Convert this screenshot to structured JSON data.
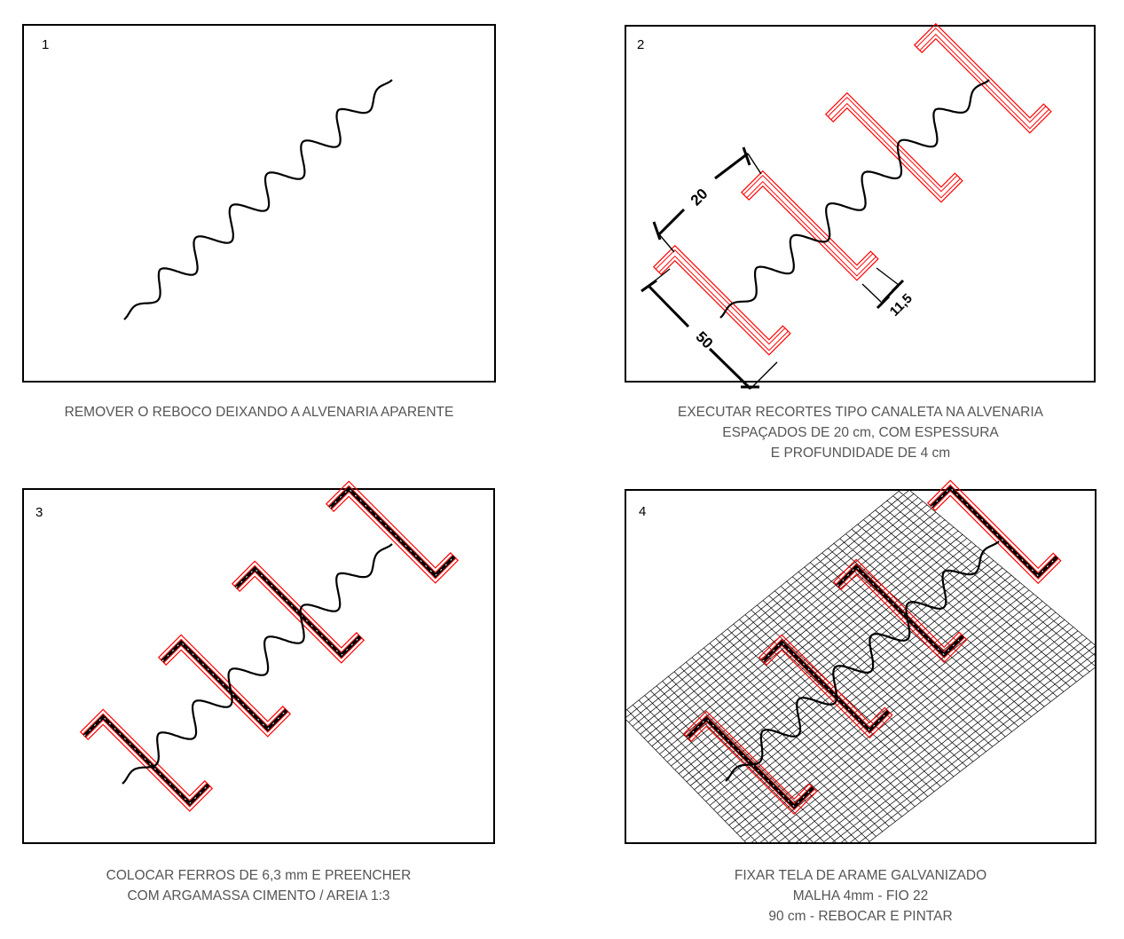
{
  "panels": [
    {
      "number": "1",
      "caption_lines": [
        "REMOVER O REBOCO DEIXANDO A ALVENARIA APARENTE"
      ]
    },
    {
      "number": "2",
      "caption_lines": [
        "EXECUTAR RECORTES TIPO CANALETA NA ALVENARIA",
        "ESPAÇADOS DE 20 cm, COM ESPESSURA",
        "E PROFUNDIDADE DE 4 cm"
      ],
      "dimensions": {
        "spacing": "20",
        "length": "50",
        "width": "11,5"
      }
    },
    {
      "number": "3",
      "caption_lines": [
        "COLOCAR FERROS DE 6,3 mm E PREENCHER",
        "COM ARGAMASSA CIMENTO / AREIA 1:3"
      ]
    },
    {
      "number": "4",
      "caption_lines": [
        "FIXAR TELA DE ARAME GALVANIZADO",
        "MALHA 4mm - FIO 22",
        "90 cm - REBOCAR E PINTAR"
      ]
    }
  ],
  "colors": {
    "frame": "#000000",
    "crack": "#000000",
    "channel": "#ff0000",
    "mesh": "#000000",
    "caption": "#555555"
  }
}
